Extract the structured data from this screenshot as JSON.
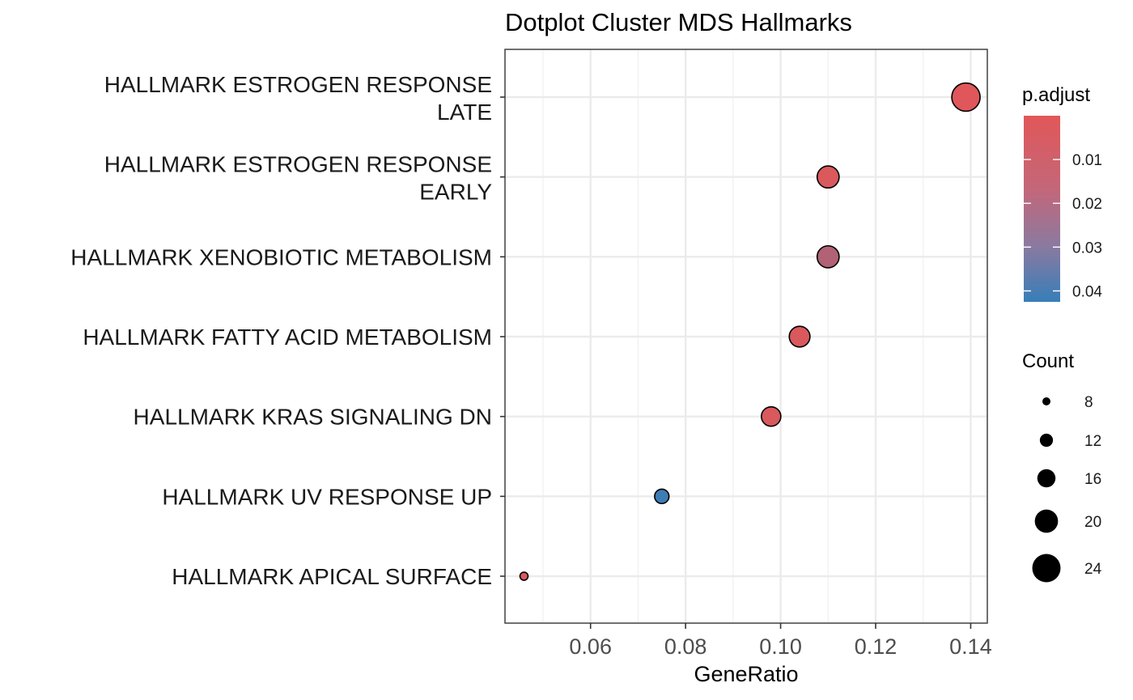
{
  "chart_data": {
    "type": "scatter",
    "title": "Dotplot Cluster MDS Hallmarks",
    "xlabel": "GeneRatio",
    "ylabel": "",
    "xlim": [
      0.042,
      0.1435
    ],
    "x_ticks": [
      0.06,
      0.08,
      0.1,
      0.12,
      0.14
    ],
    "x_tick_labels": [
      "0.06",
      "0.08",
      "0.10",
      "0.12",
      "0.14"
    ],
    "grid": true,
    "categories": [
      [
        "HALLMARK ESTROGEN RESPONSE",
        "LATE"
      ],
      [
        "HALLMARK ESTROGEN RESPONSE",
        "EARLY"
      ],
      [
        "HALLMARK XENOBIOTIC METABOLISM"
      ],
      [
        "HALLMARK FATTY ACID METABOLISM"
      ],
      [
        "HALLMARK KRAS SIGNALING DN"
      ],
      [
        "HALLMARK UV RESPONSE UP"
      ],
      [
        "HALLMARK APICAL SURFACE"
      ]
    ],
    "points": [
      {
        "x": 0.139,
        "count": 24,
        "p_adjust": 0.0005
      },
      {
        "x": 0.11,
        "count": 19,
        "p_adjust": 0.002
      },
      {
        "x": 0.11,
        "count": 19,
        "p_adjust": 0.012
      },
      {
        "x": 0.104,
        "count": 18,
        "p_adjust": 0.002
      },
      {
        "x": 0.098,
        "count": 17,
        "p_adjust": 0.002
      },
      {
        "x": 0.075,
        "count": 13,
        "p_adjust": 0.041
      },
      {
        "x": 0.046,
        "count": 8,
        "p_adjust": 0.002
      }
    ],
    "color_legend": {
      "title": "p.adjust",
      "range": [
        0.0,
        0.0425
      ],
      "low_color": "#e15759",
      "high_color": "#377eb8",
      "ticks": [
        0.01,
        0.02,
        0.03,
        0.04
      ],
      "tick_labels": [
        "0.01",
        "0.02",
        "0.03",
        "0.04"
      ]
    },
    "size_legend": {
      "title": "Count",
      "values": [
        8,
        12,
        16,
        20,
        24
      ],
      "labels": [
        "8",
        "12",
        "16",
        "20",
        "24"
      ]
    },
    "legend_position": "right"
  }
}
